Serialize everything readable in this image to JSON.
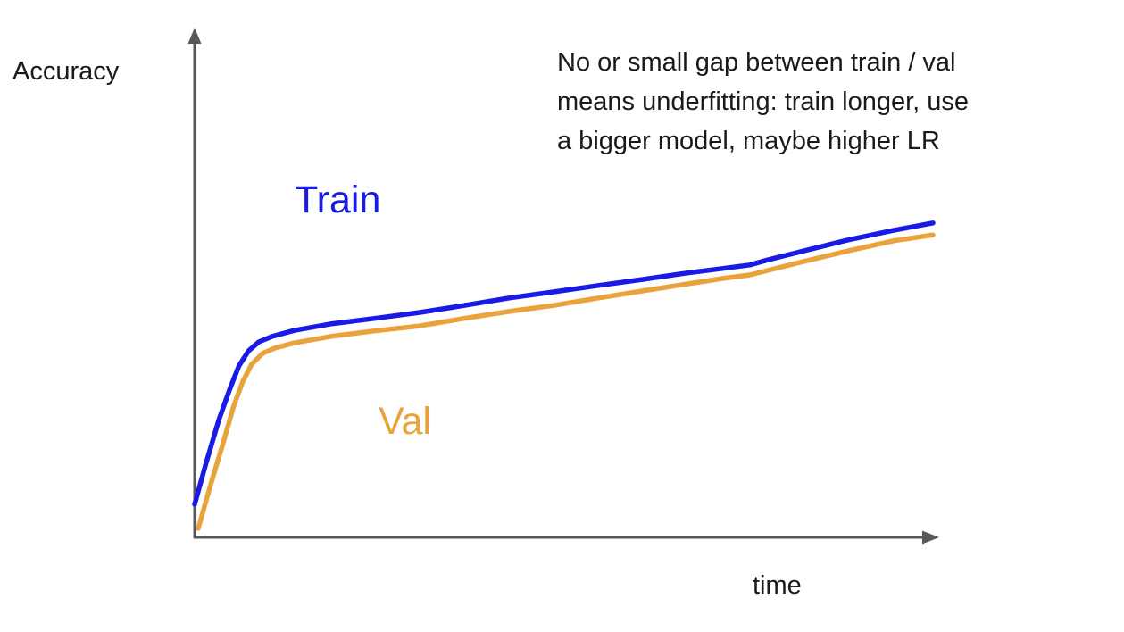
{
  "labels": {
    "y_axis": "Accuracy",
    "x_axis": "time",
    "train": "Train",
    "val": "Val"
  },
  "annotation": {
    "lines": [
      "No or small gap between train / val",
      "means underfitting: train longer, use",
      "a bigger model, maybe higher LR"
    ]
  },
  "colors": {
    "train": "#1a1ae6",
    "val": "#E8A33D",
    "axis": "#595959",
    "text": "#1a1a1a",
    "background": "#ffffff"
  },
  "chart_data": {
    "type": "line",
    "title": "",
    "xlabel": "time",
    "ylabel": "Accuracy",
    "x_range": [
      0,
      100
    ],
    "y_range": [
      0,
      1
    ],
    "grid": false,
    "legend": "inline curve labels (Train above curves, Val below)",
    "annotation": "No or small gap between train / val means underfitting: train longer, use a bigger model, maybe higher LR",
    "series": [
      {
        "name": "Train",
        "color": "#1a1ae6",
        "points": [
          [
            0,
            0.066
          ],
          [
            1.5,
            0.146
          ],
          [
            3.3,
            0.236
          ],
          [
            4.8,
            0.298
          ],
          [
            6.0,
            0.343
          ],
          [
            7.3,
            0.373
          ],
          [
            8.7,
            0.391
          ],
          [
            10.5,
            0.402
          ],
          [
            13.5,
            0.414
          ],
          [
            18.4,
            0.427
          ],
          [
            24.4,
            0.438
          ],
          [
            30.5,
            0.45
          ],
          [
            36.5,
            0.464
          ],
          [
            42.6,
            0.479
          ],
          [
            48.6,
            0.491
          ],
          [
            54.7,
            0.504
          ],
          [
            60.7,
            0.516
          ],
          [
            66.7,
            0.529
          ],
          [
            71.6,
            0.538
          ],
          [
            75.2,
            0.545
          ],
          [
            77.6,
            0.555
          ],
          [
            82.5,
            0.573
          ],
          [
            88.5,
            0.595
          ],
          [
            94.6,
            0.614
          ],
          [
            100,
            0.629
          ]
        ]
      },
      {
        "name": "Val",
        "color": "#E8A33D",
        "points": [
          [
            0.5,
            0.018
          ],
          [
            2.1,
            0.102
          ],
          [
            3.9,
            0.191
          ],
          [
            5.3,
            0.263
          ],
          [
            6.5,
            0.311
          ],
          [
            7.7,
            0.346
          ],
          [
            9.2,
            0.368
          ],
          [
            10.9,
            0.379
          ],
          [
            13.5,
            0.389
          ],
          [
            18.4,
            0.402
          ],
          [
            24.4,
            0.413
          ],
          [
            30.5,
            0.423
          ],
          [
            36.5,
            0.438
          ],
          [
            42.6,
            0.452
          ],
          [
            48.6,
            0.464
          ],
          [
            54.7,
            0.479
          ],
          [
            60.7,
            0.493
          ],
          [
            66.7,
            0.507
          ],
          [
            71.6,
            0.518
          ],
          [
            75.2,
            0.525
          ],
          [
            77.6,
            0.534
          ],
          [
            82.5,
            0.552
          ],
          [
            88.5,
            0.573
          ],
          [
            94.6,
            0.593
          ],
          [
            100,
            0.605
          ]
        ]
      }
    ]
  }
}
